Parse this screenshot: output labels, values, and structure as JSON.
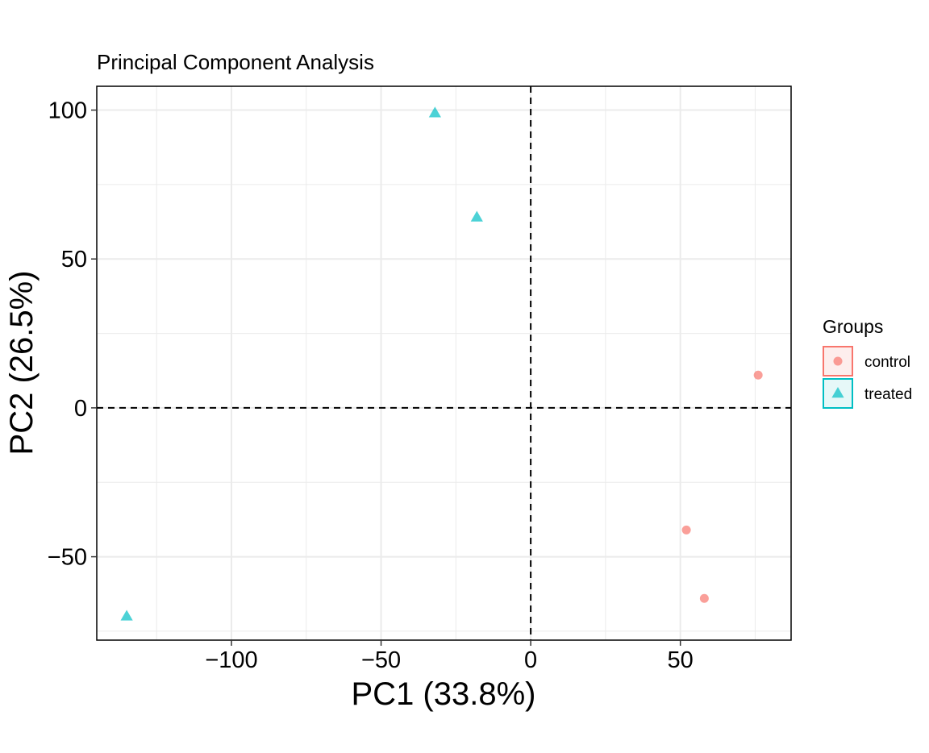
{
  "chart_data": {
    "type": "scatter",
    "title": "Principal Component Analysis",
    "xlabel": "PC1 (33.8%)",
    "ylabel": "PC2 (26.5%)",
    "xlim": [
      -145,
      87
    ],
    "ylim": [
      -78,
      108
    ],
    "x_ticks": [
      -100,
      -50,
      0,
      50
    ],
    "x_tick_labels": [
      "−100",
      "−50",
      "0",
      "50"
    ],
    "y_ticks": [
      -50,
      0,
      50,
      100
    ],
    "y_tick_labels": [
      "−50",
      "0",
      "50",
      "100"
    ],
    "grid": true,
    "reference_lines": {
      "x": 0,
      "y": 0,
      "style": "dashed"
    },
    "legend": {
      "title": "Groups",
      "placement": "right"
    },
    "series": [
      {
        "name": "control",
        "marker": "circle",
        "color": "#F8766D",
        "points": [
          {
            "x": 76,
            "y": 11
          },
          {
            "x": 52,
            "y": -41
          },
          {
            "x": 58,
            "y": -64
          }
        ]
      },
      {
        "name": "treated",
        "marker": "triangle",
        "color": "#00BFC4",
        "points": [
          {
            "x": -32,
            "y": 99
          },
          {
            "x": -18,
            "y": 64
          },
          {
            "x": -135,
            "y": -70
          }
        ]
      }
    ]
  }
}
